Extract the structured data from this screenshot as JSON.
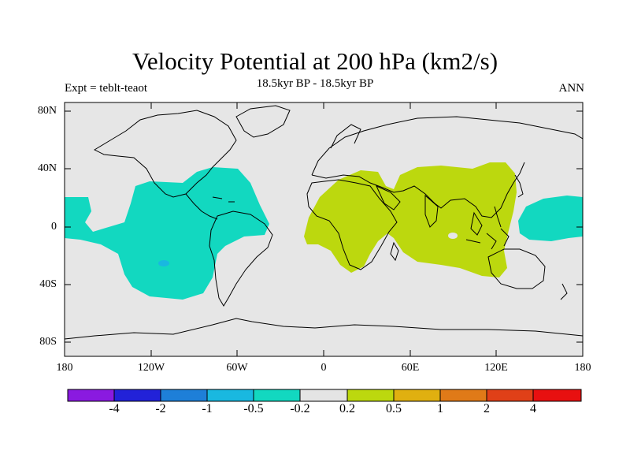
{
  "title": "Velocity Potential at 200 hPa (km2/s)",
  "subtitle": "18.5kyr BP - 18.5kyr BP",
  "left_string": "Expt = teblt-teaot",
  "right_string": "ANN",
  "lat_labels": [
    "80N",
    "40N",
    "0",
    "40S",
    "80S"
  ],
  "lon_labels": [
    "180",
    "120W",
    "60W",
    "0",
    "60E",
    "120E",
    "180"
  ],
  "colorbar": {
    "colors": [
      "#8a1ae0",
      "#2222d8",
      "#1e7fd8",
      "#19b8e0",
      "#12d8c0",
      "#e4e4e4",
      "#bcd80e",
      "#e0b010",
      "#e07a18",
      "#e04018",
      "#e81010"
    ],
    "labels": [
      "-4",
      "-2",
      "-1",
      "-0.5",
      "-0.2",
      "0.2",
      "0.5",
      "1",
      "2",
      "4"
    ]
  },
  "colors": {
    "land_background": "#e6e6e6",
    "negative_region": "#12d8c0",
    "positive_region": "#bcd80e",
    "min_center": "#19b8e0"
  }
}
